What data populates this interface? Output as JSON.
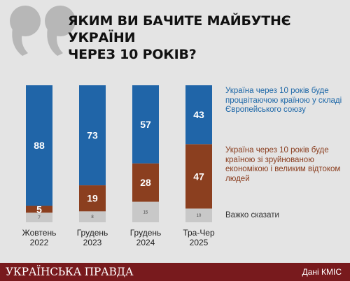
{
  "title": {
    "line1": "ЯКИМ ВИ БАЧИТЕ МАЙБУТНЄ УКРАЇНИ",
    "line2": "ЧЕРЕЗ 10 РОКІВ?"
  },
  "colors": {
    "eu": "#2065a8",
    "ruin": "#8b3f1f",
    "hard": "#c8c8c8",
    "brand_bar": "#781a1d",
    "quote": "#b7b7b7"
  },
  "icons": {
    "quote": "double-quote-mark-icon"
  },
  "legend": {
    "eu": "Україна через 10 років буде процвітаючою країною у складі Європейського союзу",
    "ruin": "Україна через 10 років буде країною зі зруйнованою економікою і великим відтоком людей",
    "hard": "Важко сказати"
  },
  "footer": {
    "brand": "УКРАЇНСЬКА ПРАВДА",
    "source": "Дані КМІС"
  },
  "chart_data": {
    "type": "bar",
    "stacked": true,
    "categories": [
      [
        "Жовтень",
        "2022"
      ],
      [
        "Грудень",
        "2023"
      ],
      [
        "Грудень",
        "2024"
      ],
      [
        "Тра-Чер",
        "2025"
      ]
    ],
    "series": [
      {
        "key": "hard",
        "values": [
          7,
          8,
          15,
          10
        ]
      },
      {
        "key": "ruin",
        "values": [
          5,
          19,
          28,
          47
        ]
      },
      {
        "key": "eu",
        "values": [
          88,
          73,
          57,
          43
        ]
      }
    ],
    "ylim": [
      0,
      100
    ]
  }
}
